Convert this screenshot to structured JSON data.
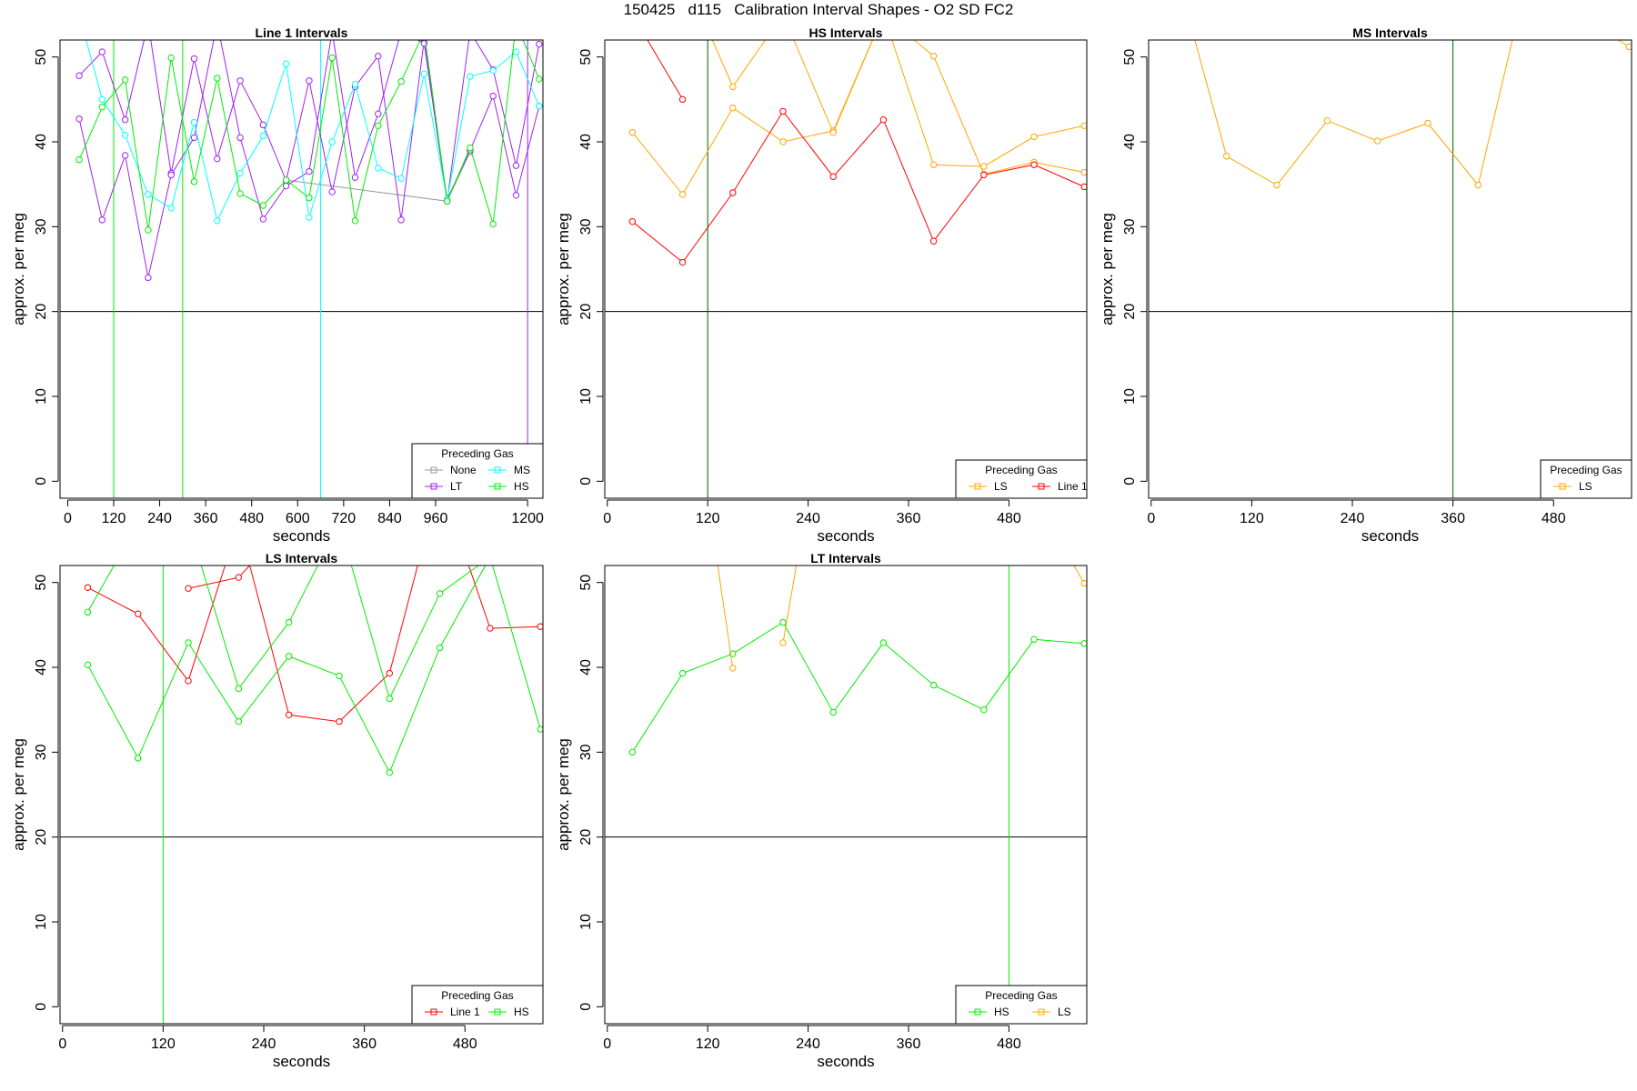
{
  "title": "150425   d115   Calibration Interval Shapes - O2 SD FC2",
  "colors": {
    "None": "#999999",
    "LT": "#a020f0",
    "MS": "#00ffff",
    "HS": "#00ee00",
    "LS": "#ffa500",
    "Line 1": "#ff0000",
    "ref": "#006400"
  },
  "chart_data": [
    {
      "type": "line",
      "title": "Line 1 Intervals",
      "xlabel": "seconds",
      "ylabel": "approx. per meg",
      "xlim": [
        -20,
        1240
      ],
      "ylim": [
        -2,
        52
      ],
      "xticks": [
        0,
        120,
        240,
        360,
        480,
        600,
        720,
        840,
        960,
        1200
      ],
      "yticks": [
        0,
        10,
        20,
        30,
        40,
        50
      ],
      "hline": 20,
      "vlines": [
        {
          "x": 120,
          "color": "HS"
        },
        {
          "x": 300,
          "color": "HS"
        },
        {
          "x": 660,
          "color": "MS"
        },
        {
          "x": 1200,
          "color": "LT"
        }
      ],
      "legend": {
        "title": "Preceding Gas",
        "position": "bottom-right",
        "ncol": 2,
        "entries": [
          "None",
          "LT",
          "MS",
          "HS"
        ]
      },
      "series": [
        {
          "name": "None",
          "x": [
            570,
            990,
            1050
          ],
          "y": [
            35.5,
            33,
            38.8
          ]
        },
        {
          "name": "LT",
          "x": [
            30,
            90,
            150,
            210,
            270,
            330,
            390,
            450,
            510,
            570,
            630,
            690,
            750,
            810,
            870,
            930,
            990,
            1050,
            1110,
            1170,
            1230,
            30,
            90,
            150,
            210,
            270,
            330,
            390,
            450,
            510,
            570,
            630,
            690,
            750,
            810,
            870,
            930,
            990,
            1050,
            1110,
            1170,
            1230
          ],
          "y": [
            47.8,
            50.6,
            42.6,
            54,
            36.3,
            49.8,
            38,
            47.2,
            42,
            35.4,
            47.2,
            34.1,
            46.5,
            50.1,
            30.8,
            52,
            33.2,
            39,
            45.4,
            33.7,
            44.2,
            42.7,
            30.8,
            38.4,
            24,
            36.1,
            40.5,
            54,
            40.5,
            30.9,
            34.8,
            36.5,
            53,
            35.8,
            43.3,
            53,
            51.6,
            33,
            53,
            48.5,
            37.2,
            51.5
          ],
          "split": 21
        },
        {
          "name": "MS",
          "x": [
            30,
            90,
            150,
            210,
            270,
            330,
            390,
            450,
            510,
            570,
            630,
            690,
            750,
            810,
            870,
            930,
            990,
            1050,
            1110,
            1170,
            1230
          ],
          "y": [
            55,
            45,
            40.8,
            33.8,
            32.2,
            42.3,
            30.7,
            36.3,
            40.7,
            49.2,
            31.1,
            40,
            46.8,
            36.9,
            35.7,
            48,
            33.2,
            47.7,
            48.4,
            50.6,
            44.2
          ]
        },
        {
          "name": "HS",
          "x": [
            30,
            90,
            150,
            210,
            270,
            330,
            390,
            450,
            510,
            570,
            630,
            690,
            750,
            810,
            870,
            930,
            990,
            1050,
            1110,
            1170,
            1230
          ],
          "y": [
            37.9,
            44.1,
            47.3,
            29.6,
            49.9,
            35.3,
            47.5,
            33.9,
            32.5,
            35.5,
            33.4,
            49.9,
            30.7,
            41.9,
            47.1,
            53,
            33,
            39.3,
            30.3,
            54,
            47.4
          ]
        }
      ]
    },
    {
      "type": "line",
      "title": "HS Intervals",
      "xlabel": "seconds",
      "ylabel": "approx. per meg",
      "xlim": [
        -3,
        573
      ],
      "ylim": [
        -2,
        52
      ],
      "xticks": [
        0,
        120,
        240,
        360,
        480
      ],
      "yticks": [
        0,
        10,
        20,
        30,
        40,
        50
      ],
      "hline": 20,
      "vlines": [
        {
          "x": 120,
          "color": "ref"
        }
      ],
      "legend": {
        "title": "Preceding Gas",
        "position": "bottom-right",
        "ncol": 2,
        "entries": [
          "LS",
          "Line 1"
        ]
      },
      "series": [
        {
          "name": "LS",
          "x": [
            30,
            90,
            150,
            210,
            270,
            330,
            390,
            450,
            510,
            570,
            30,
            90,
            150,
            210,
            270,
            330,
            390,
            450,
            510,
            570
          ],
          "y": [
            41.1,
            33.8,
            44,
            40,
            41.3,
            55,
            37.3,
            37.1,
            40.6,
            41.9,
            55,
            60,
            46.5,
            55,
            41.1,
            55,
            50.1,
            36.2,
            37.6,
            36.4
          ],
          "split": 10
        },
        {
          "name": "Line 1",
          "x": [
            30,
            90,
            150,
            210,
            270,
            330,
            390,
            450,
            510,
            570,
            30,
            90
          ],
          "y": [
            30.6,
            25.8,
            34,
            43.6,
            35.9,
            42.6,
            28.3,
            36.1,
            37.3,
            34.7,
            55,
            45
          ],
          "split": 10
        }
      ]
    },
    {
      "type": "line",
      "title": "MS Intervals",
      "xlabel": "seconds",
      "ylabel": "approx. per meg",
      "xlim": [
        -3,
        573
      ],
      "ylim": [
        -2,
        52
      ],
      "xticks": [
        0,
        120,
        240,
        360,
        480
      ],
      "yticks": [
        0,
        10,
        20,
        30,
        40,
        50
      ],
      "hline": 20,
      "vlines": [
        {
          "x": 360,
          "color": "ref"
        }
      ],
      "legend": {
        "title": "Preceding Gas",
        "position": "bottom-right",
        "ncol": 1,
        "entries": [
          "LS"
        ]
      },
      "series": [
        {
          "name": "LS",
          "x": [
            30,
            90,
            150,
            210,
            270,
            330,
            390,
            450,
            510,
            570
          ],
          "y": [
            60,
            38.3,
            34.9,
            42.5,
            40.1,
            42.2,
            34.9,
            60,
            55,
            51.2
          ]
        }
      ]
    },
    {
      "type": "line",
      "title": "LS Intervals",
      "xlabel": "seconds",
      "ylabel": "approx. per meg",
      "xlim": [
        -3,
        573
      ],
      "ylim": [
        -2,
        52
      ],
      "xticks": [
        0,
        120,
        240,
        360,
        480
      ],
      "yticks": [
        0,
        10,
        20,
        30,
        40,
        50
      ],
      "hline": 20,
      "vlines": [
        {
          "x": 120,
          "color": "HS"
        }
      ],
      "legend": {
        "title": "Preceding Gas",
        "position": "bottom-right",
        "ncol": 2,
        "entries": [
          "Line 1",
          "HS"
        ]
      },
      "series": [
        {
          "name": "Line 1",
          "x": [
            30,
            90,
            150,
            210,
            270,
            330,
            390,
            450,
            510,
            570,
            150,
            210,
            270
          ],
          "y": [
            49.4,
            46.3,
            38.4,
            57,
            34.4,
            33.6,
            39.3,
            62,
            44.6,
            44.8,
            49.3,
            50.6,
            57
          ],
          "split": 10
        },
        {
          "name": "HS",
          "x": [
            30,
            90,
            150,
            210,
            270,
            330,
            390,
            450,
            510,
            570,
            30,
            90,
            150,
            210,
            270,
            330,
            390,
            450,
            510,
            570
          ],
          "y": [
            40.3,
            29.3,
            42.9,
            33.6,
            41.3,
            39,
            27.6,
            42.3,
            53,
            32.7,
            46.5,
            57,
            57,
            37.5,
            45.3,
            57,
            36.3,
            48.7,
            53,
            60
          ],
          "split": 10
        }
      ]
    },
    {
      "type": "line",
      "title": "LT Intervals",
      "xlabel": "seconds",
      "ylabel": "approx. per meg",
      "xlim": [
        -3,
        573
      ],
      "ylim": [
        -2,
        52
      ],
      "xticks": [
        0,
        120,
        240,
        360,
        480
      ],
      "yticks": [
        0,
        10,
        20,
        30,
        40,
        50
      ],
      "hline": 20,
      "vlines": [
        {
          "x": 480,
          "color": "HS"
        }
      ],
      "legend": {
        "title": "Preceding Gas",
        "position": "bottom-right",
        "ncol": 2,
        "entries": [
          "HS",
          "LS"
        ]
      },
      "series": [
        {
          "name": "HS",
          "x": [
            30,
            90,
            150,
            210,
            270,
            330,
            390,
            450,
            510,
            570
          ],
          "y": [
            30,
            39.3,
            41.6,
            45.3,
            34.7,
            42.9,
            37.9,
            35,
            43.3,
            42.8
          ]
        },
        {
          "name": "LS",
          "x": [
            120,
            150,
            210,
            240,
            540,
            570
          ],
          "y": [
            60,
            39.9,
            42.9,
            60,
            55,
            49.9
          ],
          "split": 2
        }
      ]
    }
  ]
}
